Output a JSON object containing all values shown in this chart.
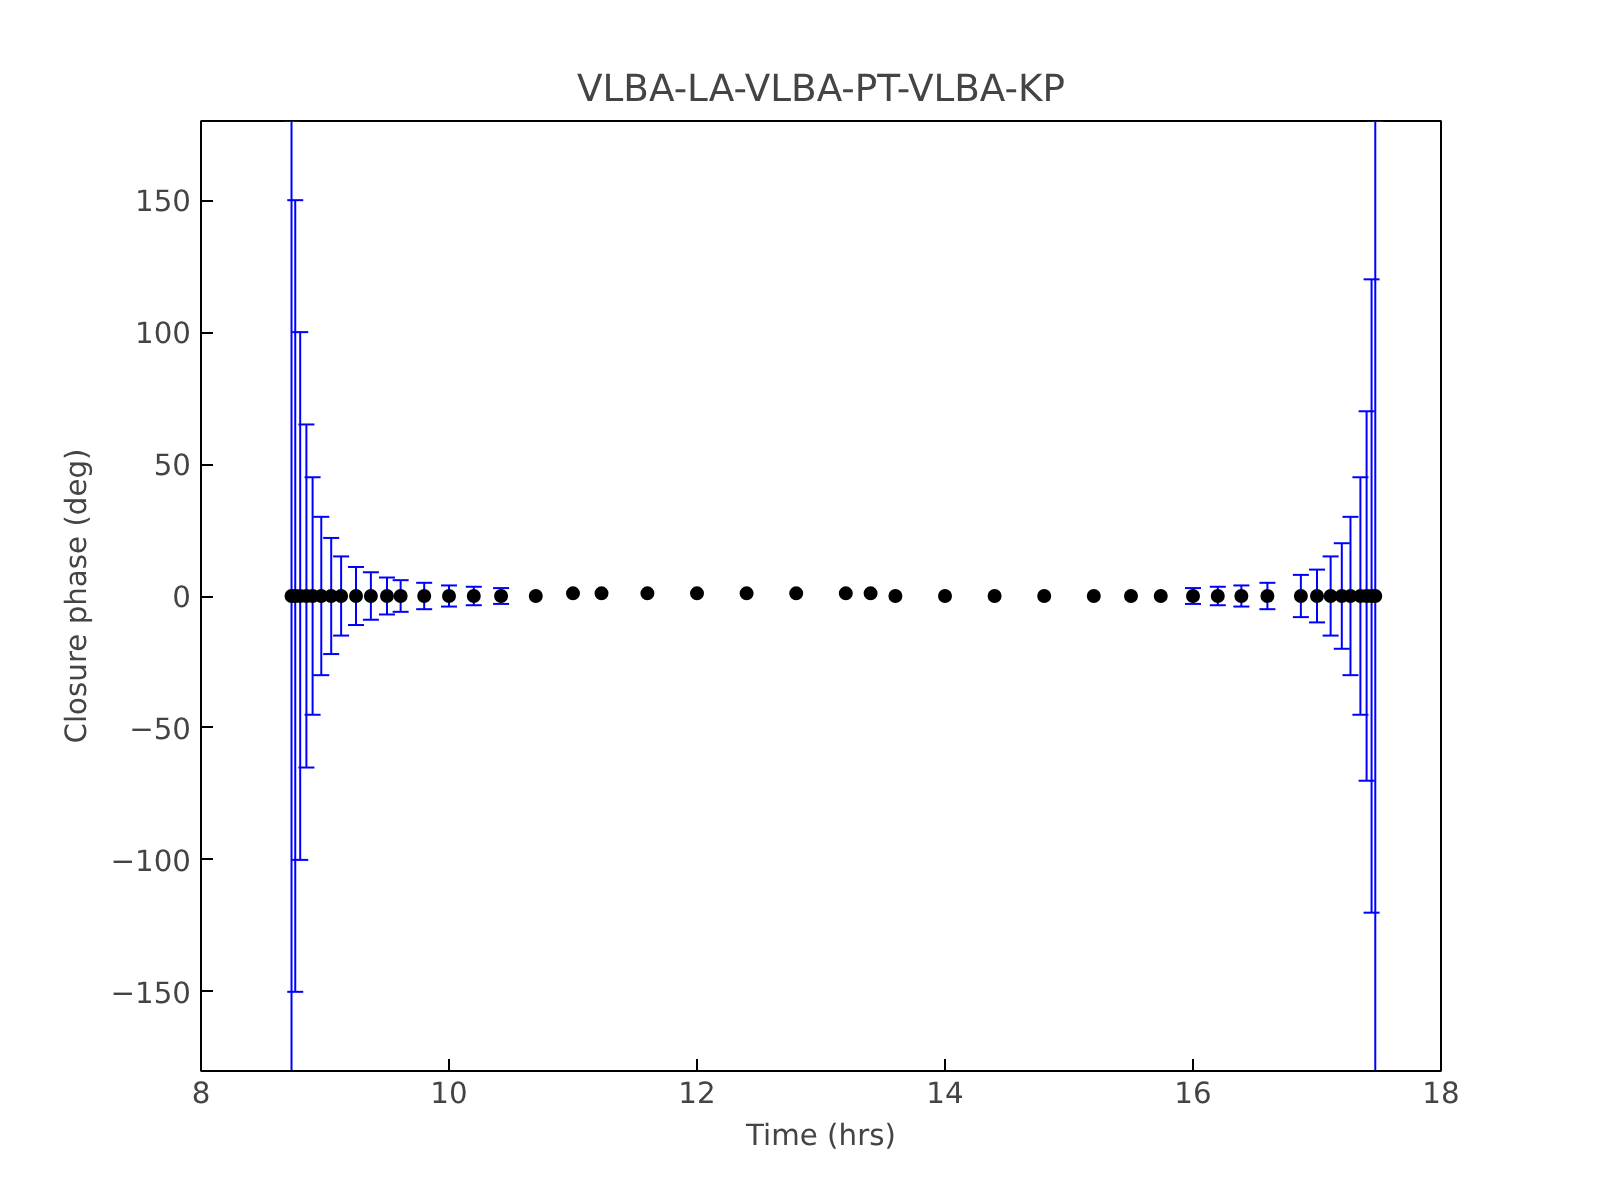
{
  "chart_data": {
    "type": "scatter",
    "title": "VLBA-LA-VLBA-PT-VLBA-KP",
    "xlabel": "Time (hrs)",
    "ylabel": "Closure phase (deg)",
    "x": [
      8.73,
      8.76,
      8.8,
      8.85,
      8.9,
      8.97,
      9.05,
      9.13,
      9.25,
      9.37,
      9.5,
      9.61,
      9.8,
      10.0,
      10.2,
      10.42,
      10.7,
      11.0,
      11.23,
      11.6,
      12.0,
      12.4,
      12.8,
      13.2,
      13.4,
      13.6,
      14.0,
      14.4,
      14.8,
      15.2,
      15.5,
      15.74,
      16.0,
      16.2,
      16.39,
      16.6,
      16.87,
      17.0,
      17.11,
      17.2,
      17.27,
      17.35,
      17.4,
      17.44,
      17.47
    ],
    "series": [
      {
        "color": "#000000",
        "marker": "circle",
        "values": [
          0,
          0,
          0,
          0,
          0,
          0,
          0,
          0,
          0,
          0,
          0,
          0,
          0,
          0,
          0,
          0,
          0,
          1,
          1,
          1,
          1,
          1,
          1,
          1,
          1,
          0,
          0,
          0,
          0,
          0,
          0,
          0,
          0,
          0,
          0,
          0,
          0,
          0,
          0,
          0,
          0,
          0,
          0,
          0,
          0
        ],
        "errors": [
          180,
          150,
          100,
          65,
          45,
          30,
          22,
          15,
          11,
          9,
          7,
          6,
          5,
          4,
          3.5,
          3,
          null,
          null,
          null,
          null,
          null,
          null,
          null,
          null,
          null,
          null,
          null,
          null,
          null,
          null,
          null,
          null,
          3,
          3.5,
          4,
          5,
          8,
          10,
          15,
          20,
          30,
          45,
          70,
          120,
          180
        ]
      }
    ],
    "xlim": [
      8,
      18
    ],
    "ylim": [
      -180,
      180
    ],
    "xticks": [
      8,
      10,
      12,
      14,
      16,
      18
    ],
    "yticks": [
      -150,
      -100,
      -50,
      0,
      50,
      100,
      150
    ],
    "grid": false
  }
}
